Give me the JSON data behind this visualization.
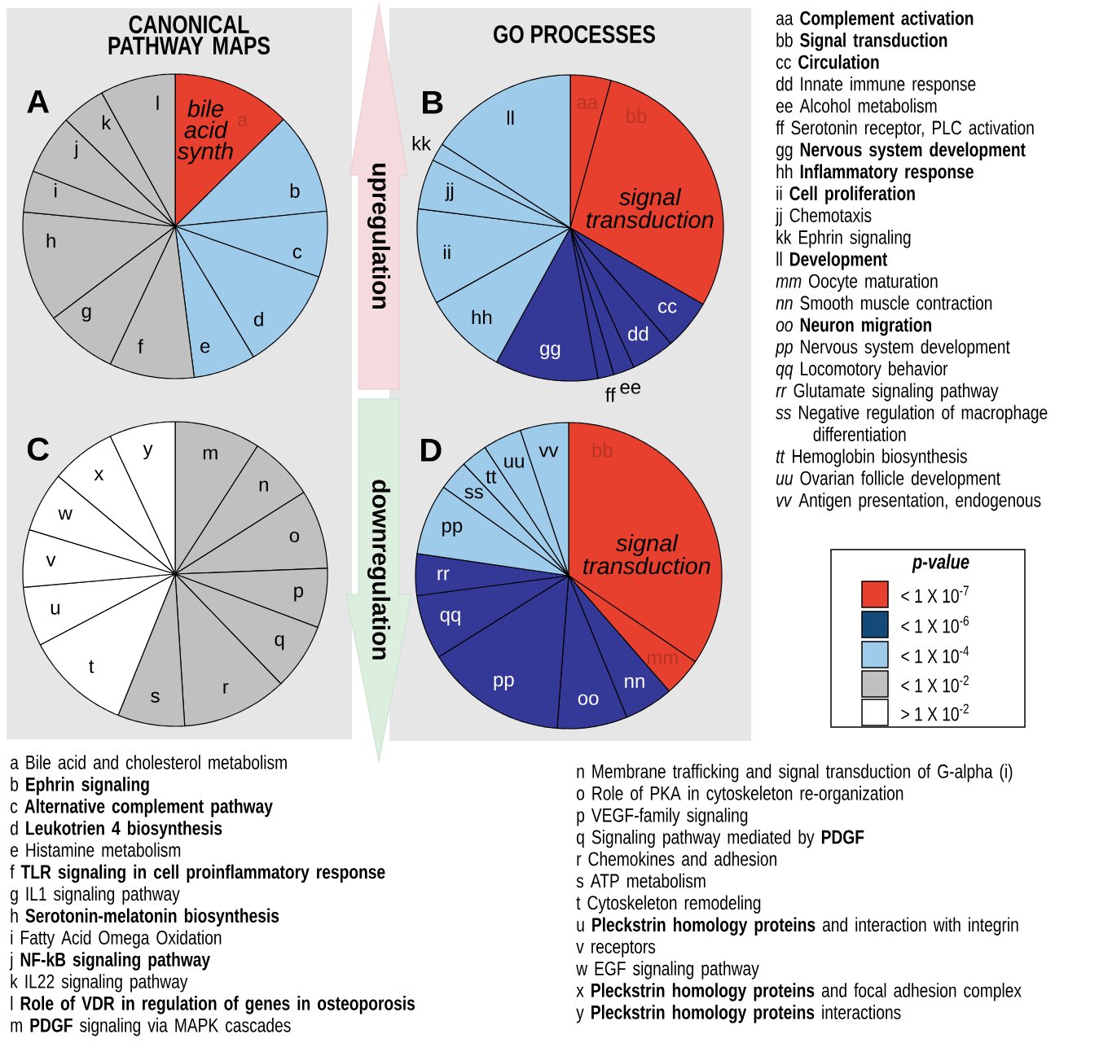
{
  "chart_data": [
    {
      "type": "pie",
      "title": "A",
      "categories": [
        "a",
        "b",
        "c",
        "d",
        "e",
        "f",
        "g",
        "h",
        "i",
        "j",
        "k",
        "l"
      ],
      "values": [
        12.6,
        10.8,
        7.0,
        11.0,
        6.6,
        9.0,
        7.7,
        11.8,
        4.4,
        6.4,
        4.7,
        8.0
      ],
      "colors": [
        "#e8402f",
        "#9fcbea",
        "#9fcbea",
        "#9fcbea",
        "#9fcbea",
        "#c0c0c0",
        "#c0c0c0",
        "#c0c0c0",
        "#c0c0c0",
        "#c0c0c0",
        "#c0c0c0",
        "#c0c0c0"
      ],
      "annotations": [
        "bile acid synth"
      ]
    },
    {
      "type": "pie",
      "title": "B",
      "categories": [
        "aa",
        "bb",
        "cc",
        "dd",
        "ee",
        "ff",
        "gg",
        "hh",
        "ii",
        "jj",
        "kk",
        "ll"
      ],
      "values": [
        4.3,
        29.0,
        5.3,
        4.6,
        2.2,
        1.7,
        10.9,
        8.9,
        10.1,
        5.3,
        1.9,
        15.8
      ],
      "colors": [
        "#e8402f",
        "#e8402f",
        "#343897",
        "#343897",
        "#343897",
        "#343897",
        "#343897",
        "#9fcbea",
        "#9fcbea",
        "#9fcbea",
        "#9fcbea",
        "#9fcbea"
      ],
      "annotations": [
        "signal transduction"
      ]
    },
    {
      "type": "pie",
      "title": "C",
      "categories": [
        "m",
        "n",
        "o",
        "p",
        "q",
        "r",
        "s",
        "t",
        "u",
        "v",
        "w",
        "x",
        "y"
      ],
      "values": [
        9.1,
        6.9,
        8.4,
        6.3,
        7.1,
        11.2,
        7.1,
        11.2,
        6.3,
        6.1,
        6.4,
        6.9,
        7.0
      ],
      "colors": [
        "#c0c0c0",
        "#c0c0c0",
        "#c0c0c0",
        "#c0c0c0",
        "#c0c0c0",
        "#c0c0c0",
        "#c0c0c0",
        "#ffffff",
        "#ffffff",
        "#ffffff",
        "#ffffff",
        "#ffffff",
        "#ffffff"
      ]
    },
    {
      "type": "pie",
      "title": "D",
      "categories": [
        "bb",
        "mm",
        "nn",
        "oo",
        "pp",
        "qq",
        "rr",
        "pp",
        "ss",
        "tt",
        "uu",
        "vv"
      ],
      "values": [
        34.5,
        4.1,
        5.2,
        7.4,
        14.9,
        6.8,
        4.4,
        7.5,
        3.2,
        2.8,
        4.1,
        5.1
      ],
      "colors": [
        "#e8402f",
        "#e8402f",
        "#343897",
        "#343897",
        "#343897",
        "#343897",
        "#343897",
        "#9fcbea",
        "#9fcbea",
        "#9fcbea",
        "#9fcbea",
        "#9fcbea"
      ],
      "annotations": [
        "signal transduction"
      ]
    },
    {
      "type": "other",
      "legend_title": "p-value",
      "categories": [
        "< 1 X 10$^{-7}$",
        "< 1 X 10$^{-6}$",
        "< 1 X 10$^{-4}$",
        "< 1 X 10$^{-2}$",
        "> 1 X 10$^{-2}$"
      ],
      "colors": [
        "#e8402f",
        "#134a78",
        "#9fcbea",
        "#c0c0c0",
        "#ffffff"
      ],
      "annotations": [
        "CANONICAL PATHWAY MAPS",
        "GO PROCESSES",
        "upregulation",
        "downregulation",
        "aa **Complement activation**",
        "bb **Signal transduction**",
        "cc **Circulation**",
        "dd Innate immune response",
        "ee Alcohol metabolism",
        "ff Serotonin receptor, PLC activation",
        "gg **Nervous system development**",
        "hh **Inflammatory response**",
        "ii **Cell proliferation**",
        "jj Chemotaxis",
        "kk Ephrin signaling",
        "ll **Development**",
        "*mm* Oocyte maturation",
        "*nn* Smooth muscle contraction",
        "*oo* **Neuron migration**",
        "*pp* Nervous system development",
        "*qq* Locomotory behavior",
        "*rr* Glutamate signaling pathway",
        "*ss* Negative regulation of macrophage differentiation",
        "*tt* Hemoglobin biosynthesis",
        "*uu* Ovarian follicle development",
        "*vv* Antigen presentation, endogenous",
        "a Bile acid and cholesterol metabolism",
        "b **Ephrin signaling**",
        "c **Alternative complement pathway**",
        "d **Leukotrien 4 biosynthesis**",
        "e Histamine metabolism",
        "f **TLR signaling in cell proinflammatory response**",
        "g IL1 signaling pathway",
        "h **Serotonin-melatonin biosynthesis**",
        "i Fatty Acid Omega Oxidation",
        "j **NF-kB signaling pathway**",
        "k IL22 signaling pathway",
        "l **Role of VDR in regulation of genes in osteoporosis**",
        "m **PDGF** signaling via MAPK cascades",
        "n Membrane trafficking and signal transduction of G-alpha (i)",
        "o Role of PKA in cytoskeleton re-organization",
        "p VEGF-family signaling",
        "q Signaling pathway mediated by **PDGF**",
        "r Chemokines and adhesion",
        "s ATP metabolism",
        "t Cytoskeleton remodeling",
        "u **Pleckstrin homology proteins** and interaction with integrin",
        "v receptors",
        "w EGF signaling pathway",
        "x **Pleckstrin homology proteins** and focal adhesion complex",
        "y **Pleckstrin homology proteins** interactions"
      ]
    }
  ]
}
